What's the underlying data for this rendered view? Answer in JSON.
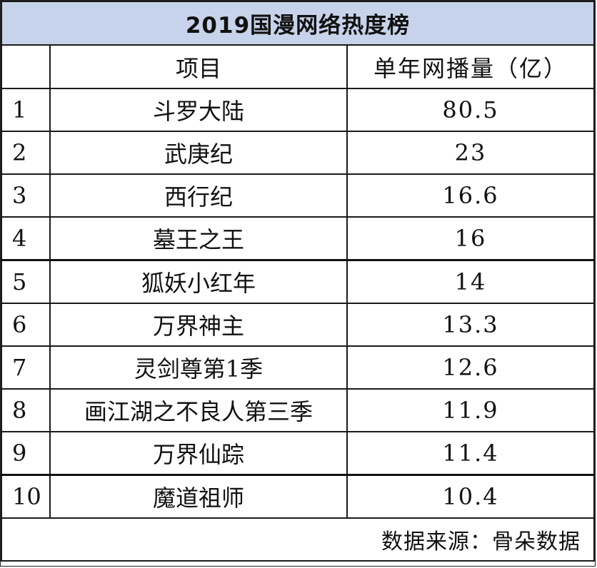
{
  "title": "2019国漫网络热度榜",
  "columns": {
    "rank": "",
    "item": "项目",
    "value": "单年网播量（亿）"
  },
  "rows": [
    {
      "rank": "1",
      "name": "斗罗大陆",
      "value": "80.5"
    },
    {
      "rank": "2",
      "name": "武庚纪",
      "value": "23"
    },
    {
      "rank": "3",
      "name": "西行纪",
      "value": "16.6"
    },
    {
      "rank": "4",
      "name": "墓王之王",
      "value": "16"
    },
    {
      "rank": "5",
      "name": "狐妖小红年",
      "value": "14"
    },
    {
      "rank": "6",
      "name": "万界神主",
      "value": "13.3"
    },
    {
      "rank": "7",
      "name": "灵剑尊第1季",
      "value": "12.6"
    },
    {
      "rank": "8",
      "name": "画江湖之不良人第三季",
      "value": "11.9"
    },
    {
      "rank": "9",
      "name": "万界仙踪",
      "value": "11.4"
    },
    {
      "rank": "10",
      "name": "魔道祖师",
      "value": "10.4"
    }
  ],
  "source": "数据来源：骨朵数据",
  "colors": {
    "title_background": "#c7d3ea",
    "border": "#1a1a1a"
  },
  "chart_data": {
    "type": "table",
    "title": "2019国漫网络热度榜",
    "columns": [
      "",
      "项目",
      "单年网播量（亿）"
    ],
    "categories": [
      "斗罗大陆",
      "武庚纪",
      "西行纪",
      "墓王之王",
      "狐妖小红年",
      "万界神主",
      "灵剑尊第1季",
      "画江湖之不良人第三季",
      "万界仙踪",
      "魔道祖师"
    ],
    "values": [
      80.5,
      23,
      16.6,
      16,
      14,
      13.3,
      12.6,
      11.9,
      11.4,
      10.4
    ],
    "annotations": [
      "数据来源：骨朵数据"
    ]
  }
}
